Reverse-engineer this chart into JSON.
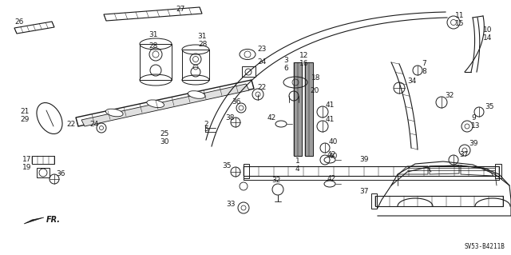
{
  "diagram_code": "SV53-B4211B",
  "background_color": "#ffffff",
  "line_color": "#1a1a1a",
  "fig_width": 6.4,
  "fig_height": 3.19,
  "dpi": 100
}
